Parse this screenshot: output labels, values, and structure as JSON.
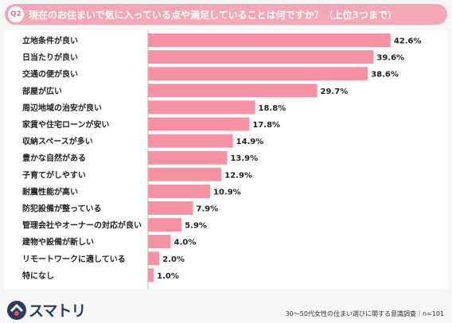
{
  "question": {
    "badge": "Q2",
    "text": "現在のお住まいで気に入っている点や満足していることは何ですか？（上位3つまで）"
  },
  "footer": {
    "logo_text": "スマトリ",
    "source": "30～50代女性の住まい選びに関する意識調査｜n=101"
  },
  "colors": {
    "bar": "#f593a5",
    "header": "#f4a8b6",
    "brand_navy": "#2a3a5e",
    "brand_red": "#e8505b"
  },
  "chart_data": {
    "type": "bar",
    "orientation": "horizontal",
    "categories": [
      "立地条件が良い",
      "日当たりが良い",
      "交通の便が良い",
      "部屋が広い",
      "周辺地域の治安が良い",
      "家賃や住宅ローンが安い",
      "収納スペースが多い",
      "豊かな自然がある",
      "子育てがしやすい",
      "耐震性能が高い",
      "防犯設備が整っている",
      "管理会社やオーナーの対応が良い",
      "建物や設備が新しい",
      "リモートワークに適している",
      "特になし"
    ],
    "values": [
      42.6,
      39.6,
      38.6,
      29.7,
      18.8,
      17.8,
      14.9,
      13.9,
      12.9,
      10.9,
      7.9,
      5.9,
      4.0,
      2.0,
      1.0
    ],
    "value_labels": [
      "42.6%",
      "39.6%",
      "38.6%",
      "29.7%",
      "18.8%",
      "17.8%",
      "14.9%",
      "13.9%",
      "12.9%",
      "10.9%",
      "7.9%",
      "5.9%",
      "4.0%",
      "2.0%",
      "1.0%"
    ],
    "unit": "%",
    "xlim": [
      0,
      45
    ],
    "grid": false,
    "legend": "none"
  }
}
